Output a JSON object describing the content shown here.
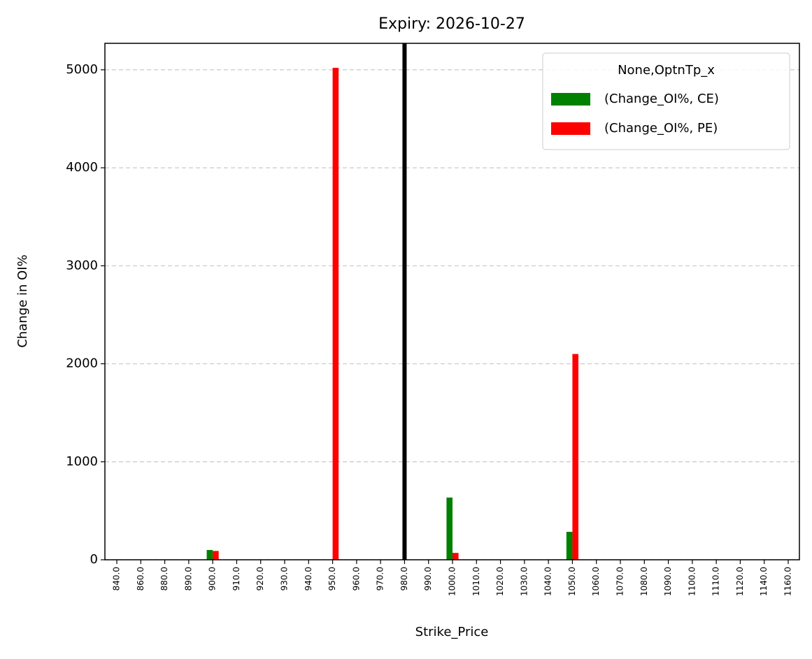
{
  "chart_data": {
    "type": "bar",
    "title": "Expiry: 2026-10-27",
    "xlabel": "Strike_Price",
    "ylabel": "Change in OI%",
    "categories": [
      "840.0",
      "860.0",
      "880.0",
      "890.0",
      "900.0",
      "910.0",
      "920.0",
      "930.0",
      "940.0",
      "950.0",
      "960.0",
      "970.0",
      "980.0",
      "990.0",
      "1000.0",
      "1010.0",
      "1020.0",
      "1030.0",
      "1040.0",
      "1050.0",
      "1060.0",
      "1070.0",
      "1080.0",
      "1090.0",
      "1100.0",
      "1110.0",
      "1120.0",
      "1140.0",
      "1160.0"
    ],
    "series": [
      {
        "name": "(Change_OI%, CE)",
        "color": "#008000",
        "values": [
          0,
          0,
          0,
          0,
          100,
          0,
          0,
          0,
          0,
          0,
          0,
          0,
          0,
          0,
          635,
          0,
          0,
          0,
          0,
          285,
          0,
          0,
          0,
          0,
          0,
          0,
          0,
          0,
          0
        ]
      },
      {
        "name": "(Change_OI%, PE)",
        "color": "#ff0000",
        "values": [
          0,
          0,
          0,
          0,
          90,
          0,
          0,
          0,
          0,
          5020,
          0,
          0,
          0,
          0,
          70,
          0,
          0,
          0,
          0,
          2100,
          0,
          0,
          0,
          0,
          0,
          0,
          0,
          0,
          0
        ]
      }
    ],
    "legend_title": "None,OptnTp_x",
    "legend": "upper right",
    "vline": "980.0",
    "vline_color": "#000000",
    "ylim": [
      0,
      5270
    ],
    "yticks": [
      0,
      1000,
      2000,
      3000,
      4000,
      5000
    ],
    "grid": true
  }
}
